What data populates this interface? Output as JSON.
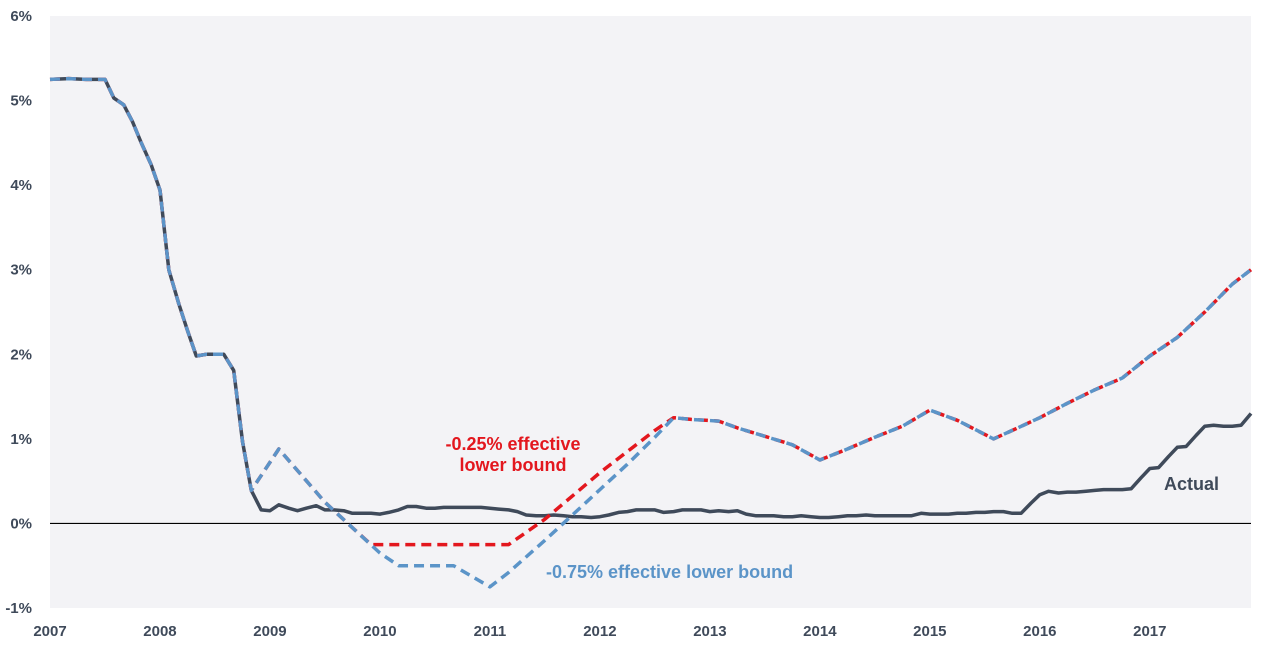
{
  "chart_data": {
    "type": "line",
    "title": "",
    "xlabel": "",
    "ylabel": "",
    "xlim": [
      2007.0,
      2017.92
    ],
    "ylim": [
      -1,
      6
    ],
    "x_ticks": [
      2007,
      2008,
      2009,
      2010,
      2011,
      2012,
      2013,
      2014,
      2015,
      2016,
      2017
    ],
    "x_tick_labels": [
      "2007",
      "2008",
      "2009",
      "2010",
      "2011",
      "2012",
      "2013",
      "2014",
      "2015",
      "2016",
      "2017"
    ],
    "y_ticks": [
      -1,
      0,
      1,
      2,
      3,
      4,
      5,
      6
    ],
    "y_tick_labels": [
      "-1%",
      "0%",
      "1%",
      "2%",
      "3%",
      "4%",
      "5%",
      "6%"
    ],
    "zero_line": true,
    "grid": false,
    "legend": "none",
    "colors": {
      "background": "#f3f3f6",
      "actual": "#3f4a5a",
      "red": "#e3171e",
      "blue": "#5b94c8",
      "axis": "#000000"
    },
    "series": [
      {
        "name": "Actual",
        "style": "solid",
        "color": "#3f4a5a",
        "points": [
          [
            2007.0,
            5.25
          ],
          [
            2007.17,
            5.26
          ],
          [
            2007.33,
            5.25
          ],
          [
            2007.5,
            5.25
          ],
          [
            2007.58,
            5.03
          ],
          [
            2007.67,
            4.95
          ],
          [
            2007.75,
            4.75
          ],
          [
            2007.83,
            4.5
          ],
          [
            2007.92,
            4.24
          ],
          [
            2008.0,
            3.94
          ],
          [
            2008.08,
            3.0
          ],
          [
            2008.17,
            2.6
          ],
          [
            2008.25,
            2.28
          ],
          [
            2008.33,
            1.98
          ],
          [
            2008.42,
            2.0
          ],
          [
            2008.5,
            2.0
          ],
          [
            2008.58,
            2.0
          ],
          [
            2008.67,
            1.81
          ],
          [
            2008.75,
            0.97
          ],
          [
            2008.83,
            0.39
          ],
          [
            2008.92,
            0.16
          ],
          [
            2009.0,
            0.15
          ],
          [
            2009.08,
            0.22
          ],
          [
            2009.17,
            0.18
          ],
          [
            2009.25,
            0.15
          ],
          [
            2009.33,
            0.18
          ],
          [
            2009.42,
            0.21
          ],
          [
            2009.5,
            0.16
          ],
          [
            2009.58,
            0.16
          ],
          [
            2009.67,
            0.15
          ],
          [
            2009.75,
            0.12
          ],
          [
            2009.83,
            0.12
          ],
          [
            2009.92,
            0.12
          ],
          [
            2010.0,
            0.11
          ],
          [
            2010.08,
            0.13
          ],
          [
            2010.17,
            0.16
          ],
          [
            2010.25,
            0.2
          ],
          [
            2010.33,
            0.2
          ],
          [
            2010.42,
            0.18
          ],
          [
            2010.5,
            0.18
          ],
          [
            2010.58,
            0.19
          ],
          [
            2010.67,
            0.19
          ],
          [
            2010.75,
            0.19
          ],
          [
            2010.83,
            0.19
          ],
          [
            2010.92,
            0.19
          ],
          [
            2011.0,
            0.18
          ],
          [
            2011.08,
            0.17
          ],
          [
            2011.17,
            0.16
          ],
          [
            2011.25,
            0.14
          ],
          [
            2011.33,
            0.1
          ],
          [
            2011.42,
            0.09
          ],
          [
            2011.5,
            0.09
          ],
          [
            2011.58,
            0.1
          ],
          [
            2011.67,
            0.09
          ],
          [
            2011.75,
            0.08
          ],
          [
            2011.83,
            0.08
          ],
          [
            2011.92,
            0.07
          ],
          [
            2012.0,
            0.08
          ],
          [
            2012.08,
            0.1
          ],
          [
            2012.17,
            0.13
          ],
          [
            2012.25,
            0.14
          ],
          [
            2012.33,
            0.16
          ],
          [
            2012.42,
            0.16
          ],
          [
            2012.5,
            0.16
          ],
          [
            2012.58,
            0.13
          ],
          [
            2012.67,
            0.14
          ],
          [
            2012.75,
            0.16
          ],
          [
            2012.83,
            0.16
          ],
          [
            2012.92,
            0.16
          ],
          [
            2013.0,
            0.14
          ],
          [
            2013.08,
            0.15
          ],
          [
            2013.17,
            0.14
          ],
          [
            2013.25,
            0.15
          ],
          [
            2013.33,
            0.11
          ],
          [
            2013.42,
            0.09
          ],
          [
            2013.5,
            0.09
          ],
          [
            2013.58,
            0.09
          ],
          [
            2013.67,
            0.08
          ],
          [
            2013.75,
            0.08
          ],
          [
            2013.83,
            0.09
          ],
          [
            2013.92,
            0.08
          ],
          [
            2014.0,
            0.07
          ],
          [
            2014.08,
            0.07
          ],
          [
            2014.17,
            0.08
          ],
          [
            2014.25,
            0.09
          ],
          [
            2014.33,
            0.09
          ],
          [
            2014.42,
            0.1
          ],
          [
            2014.5,
            0.09
          ],
          [
            2014.58,
            0.09
          ],
          [
            2014.67,
            0.09
          ],
          [
            2014.75,
            0.09
          ],
          [
            2014.83,
            0.09
          ],
          [
            2014.92,
            0.12
          ],
          [
            2015.0,
            0.11
          ],
          [
            2015.08,
            0.11
          ],
          [
            2015.17,
            0.11
          ],
          [
            2015.25,
            0.12
          ],
          [
            2015.33,
            0.12
          ],
          [
            2015.42,
            0.13
          ],
          [
            2015.5,
            0.13
          ],
          [
            2015.58,
            0.14
          ],
          [
            2015.67,
            0.14
          ],
          [
            2015.75,
            0.12
          ],
          [
            2015.83,
            0.12
          ],
          [
            2015.92,
            0.24
          ],
          [
            2016.0,
            0.34
          ],
          [
            2016.08,
            0.38
          ],
          [
            2016.17,
            0.36
          ],
          [
            2016.25,
            0.37
          ],
          [
            2016.33,
            0.37
          ],
          [
            2016.42,
            0.38
          ],
          [
            2016.5,
            0.39
          ],
          [
            2016.58,
            0.4
          ],
          [
            2016.67,
            0.4
          ],
          [
            2016.75,
            0.4
          ],
          [
            2016.83,
            0.41
          ],
          [
            2016.92,
            0.54
          ],
          [
            2017.0,
            0.65
          ],
          [
            2017.08,
            0.66
          ],
          [
            2017.17,
            0.79
          ],
          [
            2017.25,
            0.9
          ],
          [
            2017.33,
            0.91
          ],
          [
            2017.42,
            1.04
          ],
          [
            2017.5,
            1.15
          ],
          [
            2017.58,
            1.16
          ],
          [
            2017.67,
            1.15
          ],
          [
            2017.75,
            1.15
          ],
          [
            2017.83,
            1.16
          ],
          [
            2017.92,
            1.3
          ]
        ]
      },
      {
        "name": "-0.25% effective lower bound",
        "style": "dashed",
        "color": "#e3171e",
        "points": [
          [
            2007.0,
            5.25
          ],
          [
            2007.17,
            5.26
          ],
          [
            2007.33,
            5.25
          ],
          [
            2007.5,
            5.25
          ],
          [
            2007.58,
            5.03
          ],
          [
            2007.67,
            4.95
          ],
          [
            2007.75,
            4.75
          ],
          [
            2007.83,
            4.5
          ],
          [
            2007.92,
            4.24
          ],
          [
            2008.0,
            3.94
          ],
          [
            2008.08,
            3.0
          ],
          [
            2008.17,
            2.6
          ],
          [
            2008.25,
            2.28
          ],
          [
            2008.33,
            1.98
          ],
          [
            2008.42,
            2.0
          ],
          [
            2008.5,
            2.0
          ],
          [
            2008.58,
            2.0
          ],
          [
            2008.67,
            1.81
          ],
          [
            2008.75,
            0.97
          ],
          [
            2008.83,
            0.39
          ],
          [
            2009.08,
            0.88
          ],
          [
            2009.5,
            0.25
          ],
          [
            2009.75,
            -0.05
          ],
          [
            2009.92,
            -0.25
          ],
          [
            2011.17,
            -0.25
          ],
          [
            2011.5,
            0.05
          ],
          [
            2012.0,
            0.6
          ],
          [
            2012.25,
            0.85
          ],
          [
            2012.5,
            1.1
          ],
          [
            2012.67,
            1.25
          ],
          [
            2012.83,
            1.23
          ],
          [
            2013.08,
            1.21
          ],
          [
            2013.25,
            1.13
          ],
          [
            2013.5,
            1.03
          ],
          [
            2013.75,
            0.93
          ],
          [
            2014.0,
            0.75
          ],
          [
            2014.25,
            0.88
          ],
          [
            2014.5,
            1.02
          ],
          [
            2014.75,
            1.15
          ],
          [
            2015.0,
            1.34
          ],
          [
            2015.25,
            1.22
          ],
          [
            2015.58,
            1.0
          ],
          [
            2015.75,
            1.1
          ],
          [
            2016.0,
            1.25
          ],
          [
            2016.25,
            1.42
          ],
          [
            2016.5,
            1.58
          ],
          [
            2016.75,
            1.72
          ],
          [
            2017.0,
            1.98
          ],
          [
            2017.25,
            2.2
          ],
          [
            2017.5,
            2.5
          ],
          [
            2017.75,
            2.83
          ],
          [
            2017.92,
            3.0
          ]
        ]
      },
      {
        "name": "-0.75% effective lower bound",
        "style": "dashed",
        "color": "#5b94c8",
        "points": [
          [
            2007.0,
            5.25
          ],
          [
            2007.17,
            5.26
          ],
          [
            2007.33,
            5.25
          ],
          [
            2007.5,
            5.25
          ],
          [
            2007.58,
            5.03
          ],
          [
            2007.67,
            4.95
          ],
          [
            2007.75,
            4.75
          ],
          [
            2007.83,
            4.5
          ],
          [
            2007.92,
            4.24
          ],
          [
            2008.0,
            3.94
          ],
          [
            2008.08,
            3.0
          ],
          [
            2008.17,
            2.6
          ],
          [
            2008.25,
            2.28
          ],
          [
            2008.33,
            1.98
          ],
          [
            2008.42,
            2.0
          ],
          [
            2008.5,
            2.0
          ],
          [
            2008.58,
            2.0
          ],
          [
            2008.67,
            1.81
          ],
          [
            2008.75,
            0.97
          ],
          [
            2008.83,
            0.39
          ],
          [
            2009.08,
            0.88
          ],
          [
            2009.5,
            0.25
          ],
          [
            2009.75,
            -0.05
          ],
          [
            2010.0,
            -0.35
          ],
          [
            2010.17,
            -0.5
          ],
          [
            2010.67,
            -0.5
          ],
          [
            2011.0,
            -0.75
          ],
          [
            2011.17,
            -0.58
          ],
          [
            2011.5,
            -0.2
          ],
          [
            2011.75,
            0.1
          ],
          [
            2012.0,
            0.4
          ],
          [
            2012.25,
            0.7
          ],
          [
            2012.5,
            1.02
          ],
          [
            2012.67,
            1.25
          ],
          [
            2012.83,
            1.23
          ],
          [
            2013.08,
            1.21
          ],
          [
            2013.25,
            1.13
          ],
          [
            2013.5,
            1.03
          ],
          [
            2013.75,
            0.93
          ],
          [
            2014.0,
            0.75
          ],
          [
            2014.25,
            0.88
          ],
          [
            2014.5,
            1.02
          ],
          [
            2014.75,
            1.15
          ],
          [
            2015.0,
            1.34
          ],
          [
            2015.25,
            1.22
          ],
          [
            2015.58,
            1.0
          ],
          [
            2015.75,
            1.1
          ],
          [
            2016.0,
            1.25
          ],
          [
            2016.25,
            1.42
          ],
          [
            2016.5,
            1.58
          ],
          [
            2016.75,
            1.72
          ],
          [
            2017.0,
            1.98
          ],
          [
            2017.25,
            2.2
          ],
          [
            2017.5,
            2.5
          ],
          [
            2017.75,
            2.83
          ],
          [
            2017.92,
            3.0
          ]
        ]
      }
    ],
    "annotations": [
      {
        "id": "red",
        "lines": [
          "-0.25% effective",
          "lower bound"
        ],
        "color": "#e3171e"
      },
      {
        "id": "blue",
        "lines": [
          "-0.75% effective lower bound"
        ],
        "color": "#5b94c8"
      },
      {
        "id": "actual",
        "lines": [
          "Actual"
        ],
        "color": "#3f4a5a"
      }
    ]
  }
}
